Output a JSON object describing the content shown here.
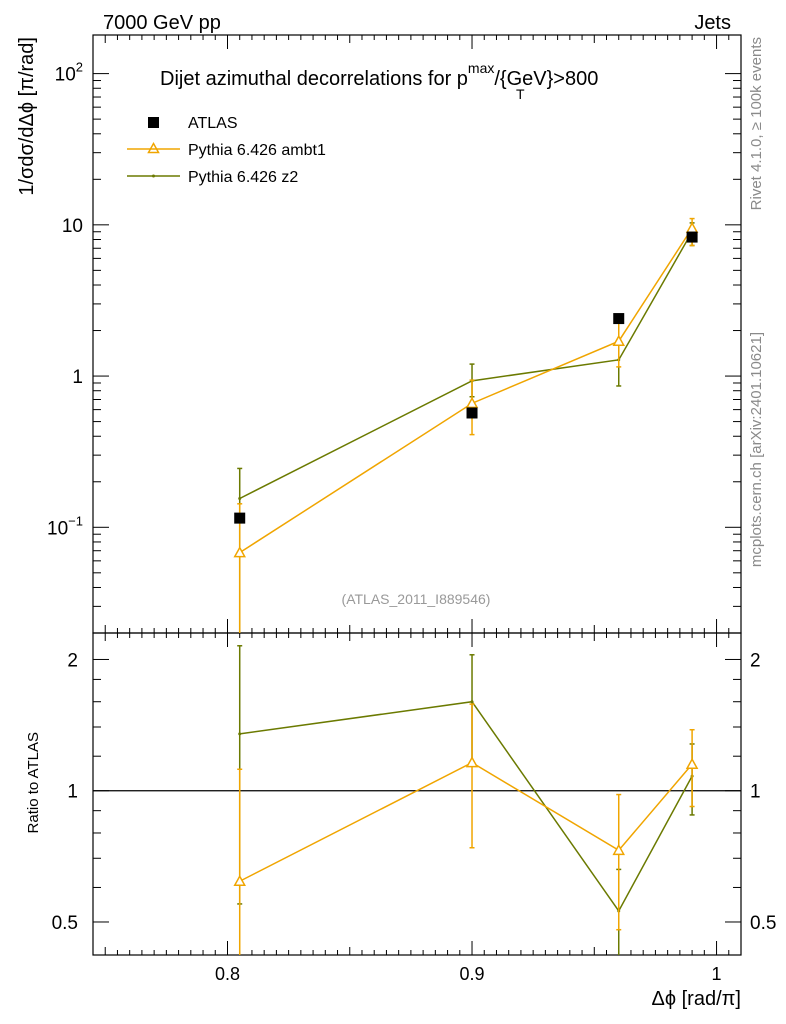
{
  "header": {
    "left": "7000 GeV pp",
    "right": "Jets"
  },
  "side_labels": {
    "rivet": "Rivet 4.1.0, ≥ 100k events",
    "source": "mcplots.cern.ch [arXiv:2401.10621]"
  },
  "chart_data": {
    "type": "line",
    "title": {
      "main": "Dijet azimuthal decorrelations for p",
      "sup": "max",
      "sub": "T",
      "suffix": "/{GeV}>800"
    },
    "analysis_label": "(ATLAS_2011_I889546)",
    "xlabel": "Δϕ [rad/π]",
    "xlim": [
      0.745,
      1.01
    ],
    "xticks": [
      0.8,
      0.9,
      1.0
    ],
    "xtick_labels": [
      "0.8",
      "0.9",
      "1"
    ],
    "main_panel": {
      "ylabel": "1/σdσ/dΔϕ [π/rad]",
      "yscale": "log",
      "ylim": [
        0.02,
        180
      ],
      "yticks": [
        {
          "value": 0.1,
          "base": "10",
          "exp": "−1"
        },
        {
          "value": 1,
          "label": "1"
        },
        {
          "value": 10,
          "label": "10"
        },
        {
          "value": 100,
          "base": "10",
          "exp": "2"
        }
      ]
    },
    "ratio_panel": {
      "ylabel": "Ratio to ATLAS",
      "ylim": [
        0.42,
        2.3
      ],
      "reference_line": 1,
      "yticks": [
        {
          "value": 0.5,
          "label": "0.5"
        },
        {
          "value": 1,
          "label": "1"
        },
        {
          "value": 2,
          "label": "2"
        }
      ]
    },
    "series": [
      {
        "name": "ATLAS",
        "style": "data",
        "color": "#000000",
        "x": [
          0.805,
          0.9,
          0.96,
          0.99
        ],
        "y": [
          0.115,
          0.57,
          2.4,
          8.3
        ]
      },
      {
        "name": "Pythia 6.426 ambt1",
        "style": "triangle",
        "color": "#f0a500",
        "x": [
          0.805,
          0.9,
          0.96,
          0.99
        ],
        "y": [
          0.068,
          0.66,
          1.7,
          9.5
        ],
        "yerr_lo": [
          0.068,
          0.25,
          0.55,
          2.2
        ],
        "yerr_hi": [
          0.075,
          0.28,
          0.6,
          1.5
        ],
        "ratio": [
          0.62,
          1.16,
          0.73,
          1.15
        ],
        "ratio_err": [
          0.5,
          0.42,
          0.25,
          0.23
        ]
      },
      {
        "name": "Pythia 6.426 z2",
        "style": "line",
        "color": "#6b7a00",
        "x": [
          0.805,
          0.9,
          0.96,
          0.99
        ],
        "y": [
          0.155,
          0.93,
          1.28,
          9.0
        ],
        "yerr_lo": [
          0.155,
          0.2,
          0.42,
          1.7
        ],
        "yerr_hi": [
          0.09,
          0.27,
          0.42,
          1.3
        ],
        "ratio": [
          1.35,
          1.6,
          0.53,
          1.08
        ],
        "ratio_err": [
          0.8,
          0.45,
          0.13,
          0.2
        ]
      }
    ]
  }
}
